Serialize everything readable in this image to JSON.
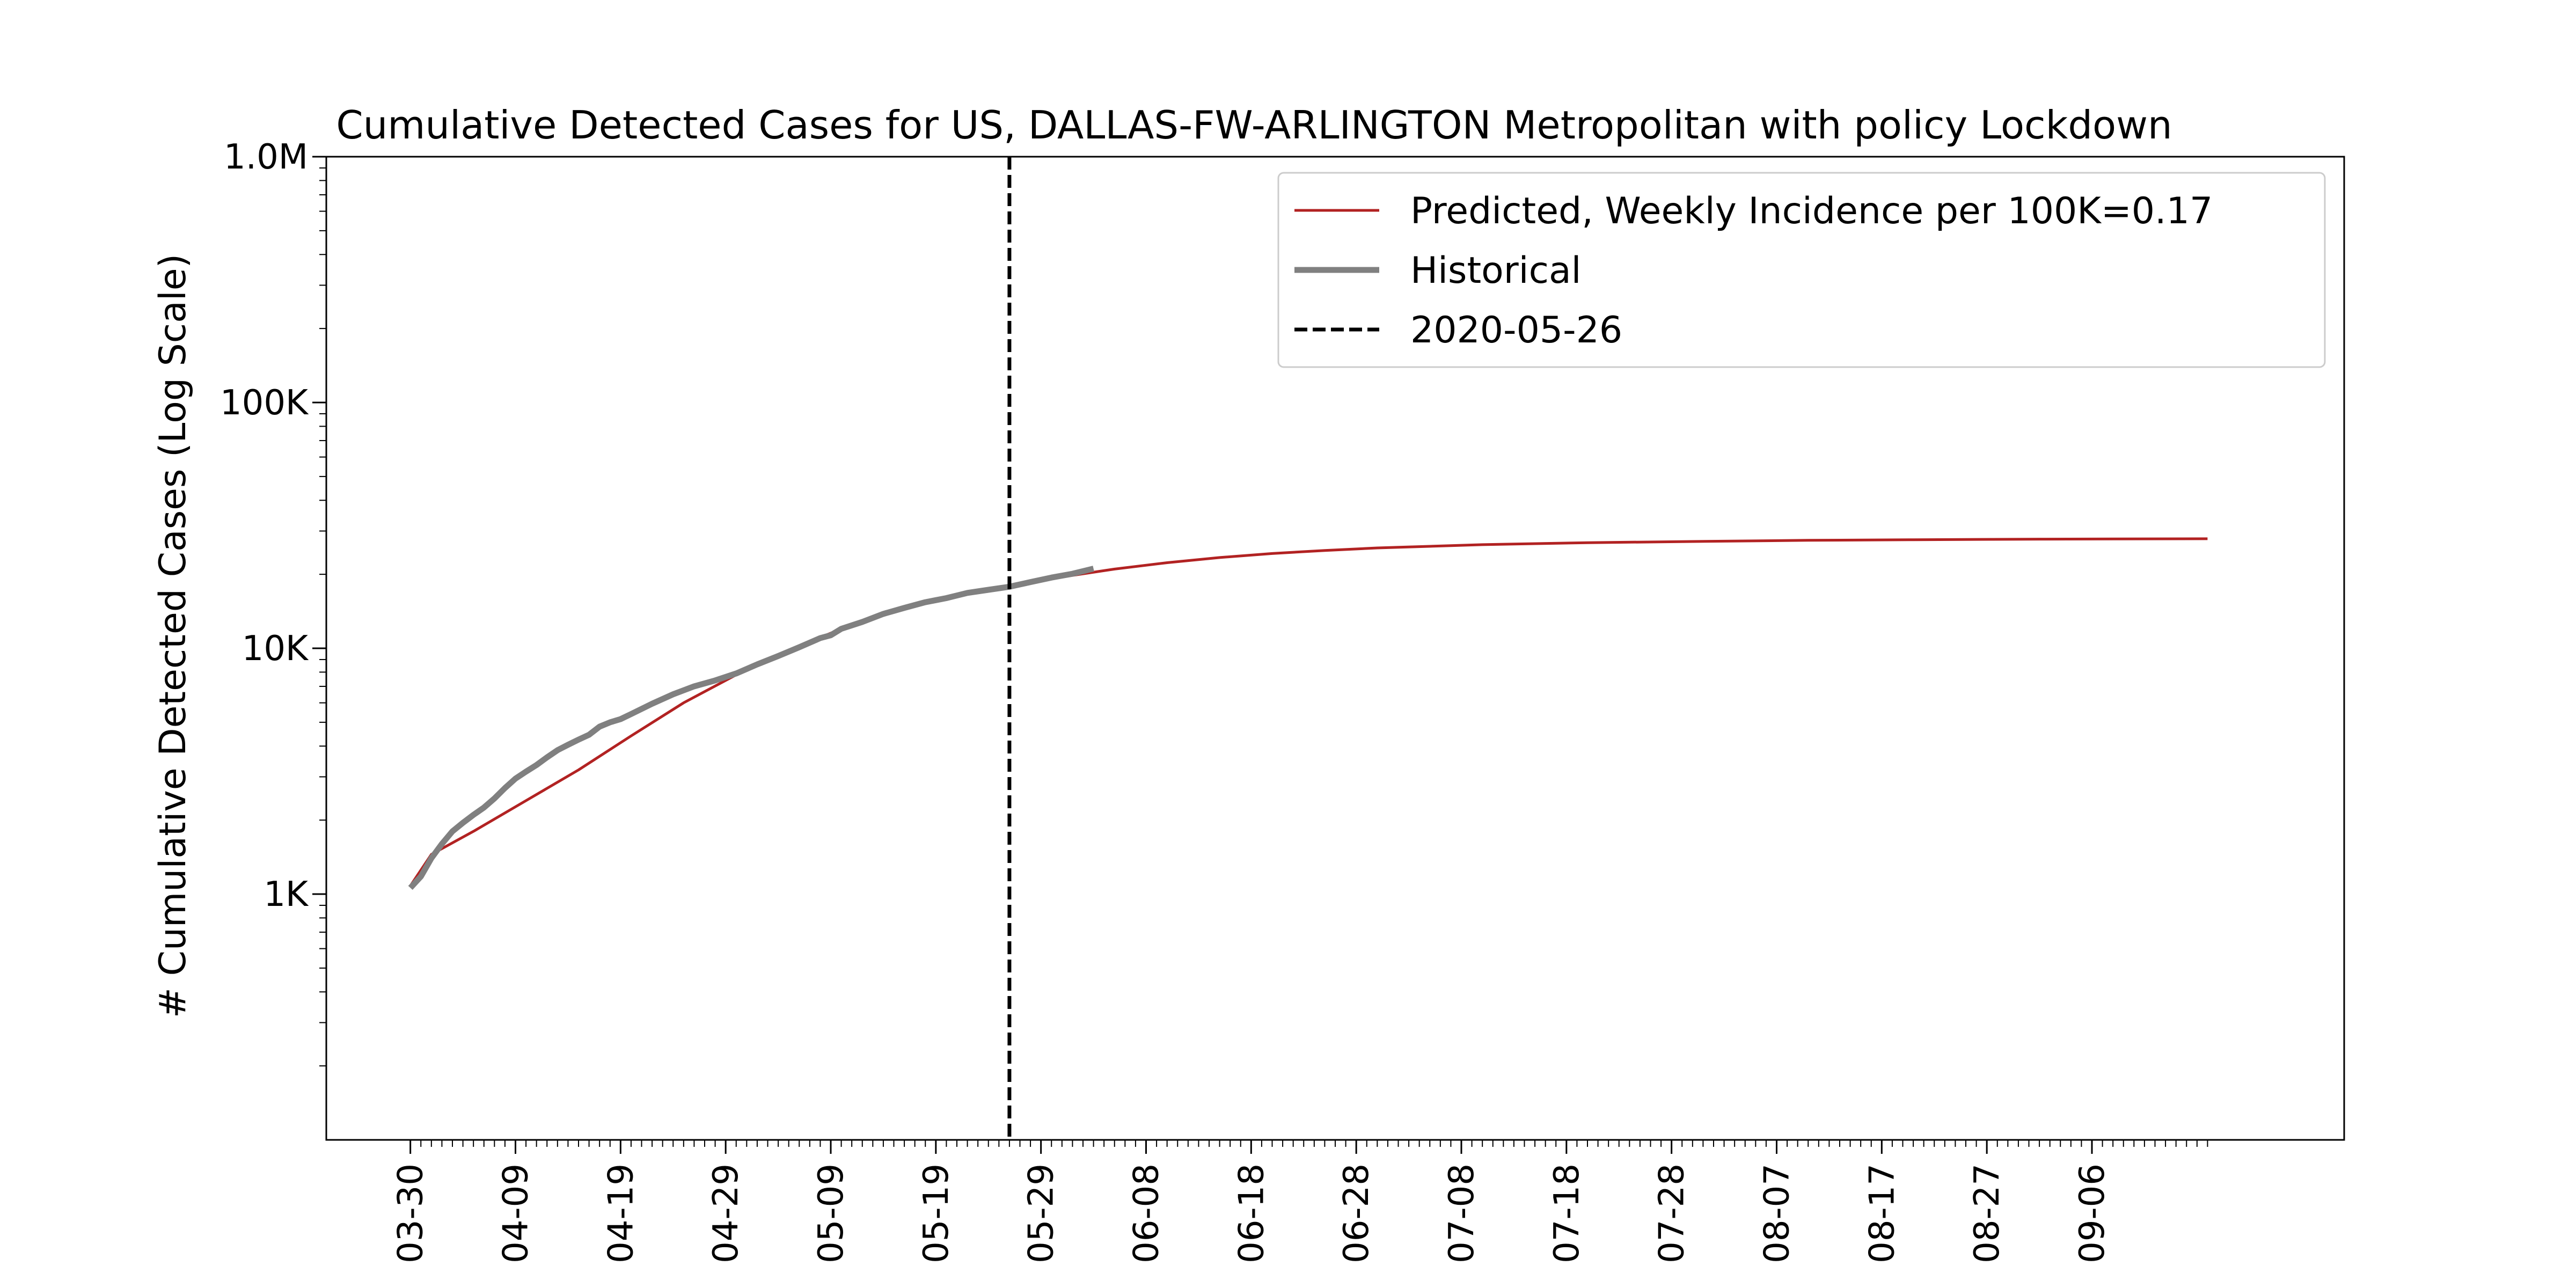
{
  "chart_data": {
    "type": "line",
    "title": "Cumulative Detected Cases for US, DALLAS-FW-ARLINGTON Metropolitan with policy Lockdown",
    "xlabel": "",
    "ylabel": "# Cumulative Detected Cases (Log Scale)",
    "y_scale": "log",
    "ylim": [
      100,
      1000000
    ],
    "yticks": [
      {
        "value": 1000,
        "label": "1K"
      },
      {
        "value": 10000,
        "label": "10K"
      },
      {
        "value": 100000,
        "label": "100K"
      },
      {
        "value": 1000000,
        "label": "1.0M"
      }
    ],
    "xlim": [
      "2020-03-22",
      "2020-09-30"
    ],
    "xticks": [
      {
        "date": "2020-03-30",
        "label": "03-30"
      },
      {
        "date": "2020-04-09",
        "label": "04-09"
      },
      {
        "date": "2020-04-19",
        "label": "04-19"
      },
      {
        "date": "2020-04-29",
        "label": "04-29"
      },
      {
        "date": "2020-05-09",
        "label": "05-09"
      },
      {
        "date": "2020-05-19",
        "label": "05-19"
      },
      {
        "date": "2020-05-29",
        "label": "05-29"
      },
      {
        "date": "2020-06-08",
        "label": "06-08"
      },
      {
        "date": "2020-06-18",
        "label": "06-18"
      },
      {
        "date": "2020-06-28",
        "label": "06-28"
      },
      {
        "date": "2020-07-08",
        "label": "07-08"
      },
      {
        "date": "2020-07-18",
        "label": "07-18"
      },
      {
        "date": "2020-07-28",
        "label": "07-28"
      },
      {
        "date": "2020-08-07",
        "label": "08-07"
      },
      {
        "date": "2020-08-17",
        "label": "08-17"
      },
      {
        "date": "2020-08-27",
        "label": "08-27"
      },
      {
        "date": "2020-09-06",
        "label": "09-06"
      }
    ],
    "minor_ticks": {
      "start": "2020-03-30",
      "end": "2020-09-17"
    },
    "legend": {
      "placement": "upper-right",
      "entries": [
        {
          "label": "Predicted, Weekly Incidence per 100K=0.17",
          "style": "solid-thin",
          "color": "#b22222"
        },
        {
          "label": "Historical",
          "style": "solid-thick",
          "color": "#808080"
        },
        {
          "label": "2020-05-26",
          "style": "dashed",
          "color": "#000000"
        }
      ]
    },
    "vline": {
      "date": "2020-05-26",
      "color": "#000000"
    },
    "series": [
      {
        "name": "Predicted, Weekly Incidence per 100K=0.17",
        "color": "#b22222",
        "points": [
          [
            "2020-03-30",
            1080
          ],
          [
            "2020-04-01",
            1450
          ],
          [
            "2020-04-05",
            1800
          ],
          [
            "2020-04-10",
            2400
          ],
          [
            "2020-04-15",
            3200
          ],
          [
            "2020-04-20",
            4400
          ],
          [
            "2020-04-25",
            6000
          ],
          [
            "2020-04-30",
            7800
          ],
          [
            "2020-05-05",
            9800
          ],
          [
            "2020-05-10",
            12000
          ],
          [
            "2020-05-15",
            14200
          ],
          [
            "2020-05-20",
            16200
          ],
          [
            "2020-05-26",
            18000
          ],
          [
            "2020-06-01",
            19800
          ],
          [
            "2020-06-05",
            21000
          ],
          [
            "2020-06-10",
            22300
          ],
          [
            "2020-06-15",
            23400
          ],
          [
            "2020-06-20",
            24300
          ],
          [
            "2020-06-25",
            25000
          ],
          [
            "2020-06-30",
            25600
          ],
          [
            "2020-07-10",
            26400
          ],
          [
            "2020-07-20",
            26900
          ],
          [
            "2020-07-30",
            27200
          ],
          [
            "2020-08-10",
            27500
          ],
          [
            "2020-08-20",
            27650
          ],
          [
            "2020-09-01",
            27800
          ],
          [
            "2020-09-17",
            27900
          ]
        ]
      },
      {
        "name": "Historical",
        "color": "#808080",
        "points": [
          [
            "2020-03-30",
            1060
          ],
          [
            "2020-03-31",
            1180
          ],
          [
            "2020-04-01",
            1400
          ],
          [
            "2020-04-02",
            1600
          ],
          [
            "2020-04-03",
            1800
          ],
          [
            "2020-04-04",
            1950
          ],
          [
            "2020-04-05",
            2100
          ],
          [
            "2020-04-06",
            2250
          ],
          [
            "2020-04-07",
            2450
          ],
          [
            "2020-04-08",
            2700
          ],
          [
            "2020-04-09",
            2950
          ],
          [
            "2020-04-10",
            3150
          ],
          [
            "2020-04-11",
            3350
          ],
          [
            "2020-04-12",
            3600
          ],
          [
            "2020-04-13",
            3850
          ],
          [
            "2020-04-14",
            4050
          ],
          [
            "2020-04-15",
            4250
          ],
          [
            "2020-04-16",
            4450
          ],
          [
            "2020-04-17",
            4800
          ],
          [
            "2020-04-18",
            5000
          ],
          [
            "2020-04-19",
            5150
          ],
          [
            "2020-04-20",
            5400
          ],
          [
            "2020-04-22",
            5950
          ],
          [
            "2020-04-24",
            6500
          ],
          [
            "2020-04-26",
            7000
          ],
          [
            "2020-04-28",
            7400
          ],
          [
            "2020-04-30",
            7900
          ],
          [
            "2020-05-02",
            8600
          ],
          [
            "2020-05-04",
            9300
          ],
          [
            "2020-05-06",
            10100
          ],
          [
            "2020-05-08",
            11000
          ],
          [
            "2020-05-09",
            11300
          ],
          [
            "2020-05-10",
            12000
          ],
          [
            "2020-05-12",
            12800
          ],
          [
            "2020-05-14",
            13800
          ],
          [
            "2020-05-16",
            14600
          ],
          [
            "2020-05-18",
            15400
          ],
          [
            "2020-05-19",
            15700
          ],
          [
            "2020-05-20",
            16000
          ],
          [
            "2020-05-22",
            16800
          ],
          [
            "2020-05-24",
            17300
          ],
          [
            "2020-05-26",
            17800
          ],
          [
            "2020-05-28",
            18600
          ],
          [
            "2020-05-30",
            19400
          ],
          [
            "2020-06-01",
            20100
          ],
          [
            "2020-06-03",
            21100
          ]
        ]
      }
    ]
  }
}
